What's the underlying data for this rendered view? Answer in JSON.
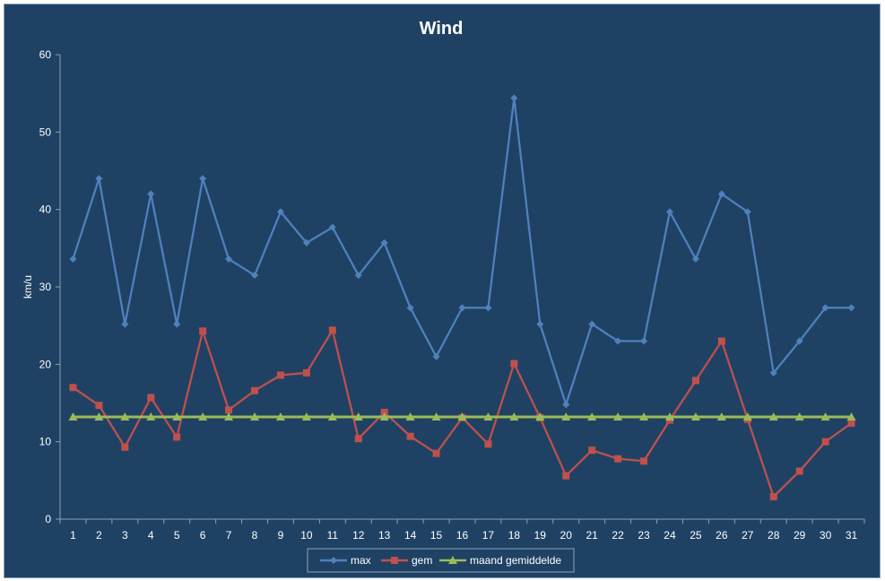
{
  "chart_data": {
    "type": "line",
    "title": "Wind",
    "xlabel": "",
    "ylabel": "km/u",
    "ylim": [
      0,
      60
    ],
    "yticks": [
      0,
      10,
      20,
      30,
      40,
      50,
      60
    ],
    "categories": [
      "1",
      "2",
      "3",
      "4",
      "5",
      "6",
      "7",
      "8",
      "9",
      "10",
      "11",
      "12",
      "13",
      "14",
      "15",
      "16",
      "17",
      "18",
      "19",
      "20",
      "21",
      "22",
      "23",
      "24",
      "25",
      "26",
      "27",
      "28",
      "29",
      "30",
      "31"
    ],
    "grid": false,
    "legend_position": "bottom",
    "series": [
      {
        "name": "max",
        "color": "#4f81bd",
        "marker": "diamond",
        "values": [
          33.6,
          44.0,
          25.2,
          42.0,
          25.2,
          44.0,
          33.6,
          31.5,
          39.7,
          35.7,
          37.7,
          31.5,
          35.7,
          27.3,
          21.0,
          27.3,
          27.3,
          54.4,
          25.2,
          14.8,
          25.2,
          23.0,
          23.0,
          39.7,
          33.6,
          42.0,
          39.7,
          18.9,
          23.0,
          27.3,
          27.3
        ]
      },
      {
        "name": "gem",
        "color": "#c0504d",
        "marker": "square",
        "values": [
          17.0,
          14.7,
          9.3,
          15.7,
          10.6,
          24.3,
          14.1,
          16.6,
          18.6,
          18.9,
          24.4,
          10.4,
          13.8,
          10.7,
          8.5,
          13.1,
          9.7,
          20.1,
          13.1,
          5.6,
          8.9,
          7.8,
          7.5,
          12.8,
          17.9,
          23.0,
          12.9,
          2.9,
          6.2,
          10.0,
          12.4
        ]
      },
      {
        "name": "maand gemiddelde",
        "color": "#9bbb59",
        "marker": "triangle",
        "values": [
          13.2,
          13.2,
          13.2,
          13.2,
          13.2,
          13.2,
          13.2,
          13.2,
          13.2,
          13.2,
          13.2,
          13.2,
          13.2,
          13.2,
          13.2,
          13.2,
          13.2,
          13.2,
          13.2,
          13.2,
          13.2,
          13.2,
          13.2,
          13.2,
          13.2,
          13.2,
          13.2,
          13.2,
          13.2,
          13.2,
          13.2
        ]
      }
    ]
  },
  "colors": {
    "background": "#1f4264",
    "axis": "#8aa0b8",
    "text": "#ffffff"
  }
}
